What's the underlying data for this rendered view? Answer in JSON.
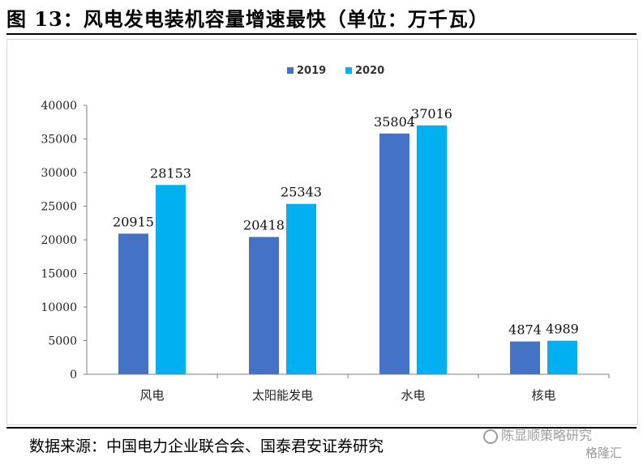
{
  "title": "图 13：风电发电装机容量增速最快（单位：万千瓦）",
  "source": "数据来源：中国电力企业联合会、国泰君安证券研究",
  "watermark": {
    "line1": "陈显顺策略研究",
    "line2": "格隆汇"
  },
  "colors": {
    "2019": "#4472C4",
    "2020": "#00B0F0"
  },
  "chart_data": {
    "type": "bar",
    "categories": [
      "风电",
      "太阳能发电",
      "水电",
      "核电"
    ],
    "series": [
      {
        "name": "2019",
        "values": [
          20915,
          20418,
          35804,
          4874
        ]
      },
      {
        "name": "2020",
        "values": [
          28153,
          25343,
          37016,
          4989
        ]
      }
    ],
    "ylim": [
      0,
      40000
    ],
    "yticks": [
      0,
      5000,
      10000,
      15000,
      20000,
      25000,
      30000,
      35000,
      40000
    ],
    "legend": "top-center",
    "grid": false
  }
}
